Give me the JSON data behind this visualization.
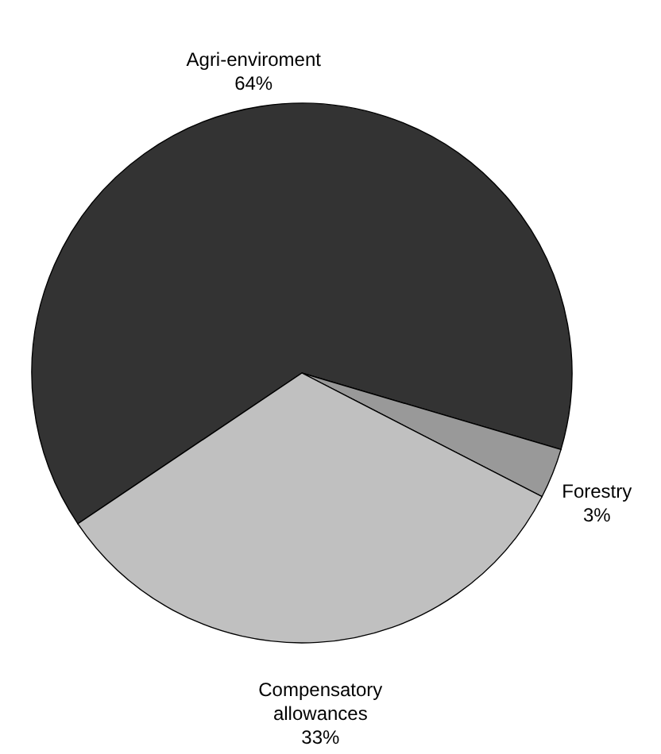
{
  "chart_data": {
    "type": "pie",
    "categories": [
      "Agri-enviroment",
      "Forestry",
      "Compensatory allowances"
    ],
    "values": [
      64,
      3,
      33
    ],
    "colors": [
      "#333333",
      "#999999",
      "#c0c0c0"
    ],
    "value_labels": [
      "64%",
      "3%",
      "33%"
    ]
  }
}
